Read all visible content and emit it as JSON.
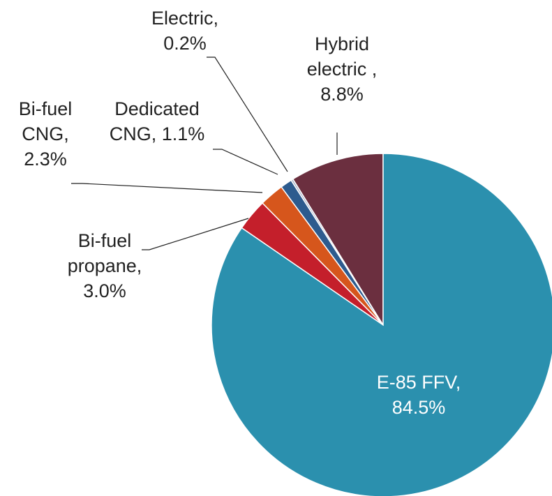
{
  "chart_data": {
    "type": "pie",
    "categories": [
      "E-85 FFV,",
      "Bi-fuel propane,",
      "Bi-fuel CNG,",
      "Dedicated CNG,",
      "Electric,",
      "Hybrid electric ,"
    ],
    "values": [
      84.5,
      3.0,
      2.3,
      1.1,
      0.2,
      8.8
    ],
    "value_labels": [
      "84.5%",
      "3.0%",
      "2.3%",
      "1.1%",
      "0.2%",
      "8.8%"
    ],
    "colors": [
      "#2b90ae",
      "#c41f2b",
      "#d6561c",
      "#2d5b8e",
      "#a8b4cc",
      "#6b2f3f"
    ]
  }
}
